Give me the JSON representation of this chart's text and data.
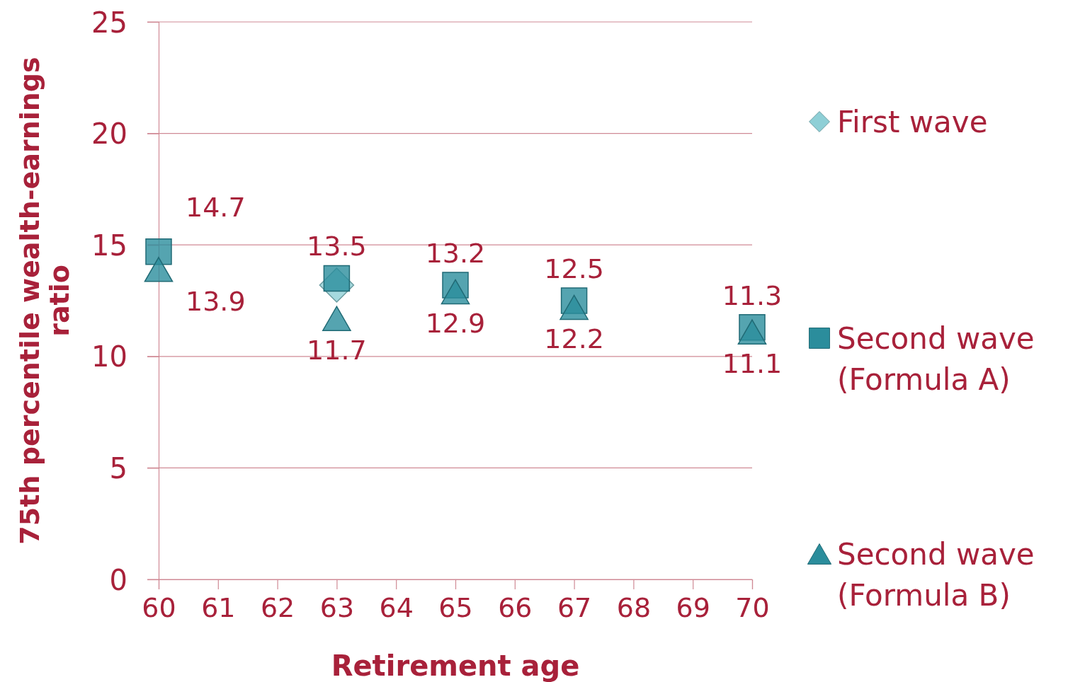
{
  "chart_data": {
    "type": "scatter",
    "xlabel": "Retirement age",
    "ylabel": "75th percentile wealth-earnings ratio",
    "x": [
      60,
      63,
      65,
      67,
      70
    ],
    "xlim": [
      60,
      70
    ],
    "xticks": [
      60,
      61,
      62,
      63,
      64,
      65,
      66,
      67,
      68,
      69,
      70
    ],
    "ylim": [
      0,
      25
    ],
    "yticks": [
      0,
      5,
      10,
      15,
      20,
      25
    ],
    "grid": "y",
    "legend": "right",
    "series": [
      {
        "name": "First wave",
        "color": "#8ecfd6",
        "marker": "diamond",
        "values": [
          null,
          13.2,
          null,
          null,
          null
        ],
        "value_labels": [
          null,
          null,
          null,
          null,
          null
        ]
      },
      {
        "name": "Second wave (Formula A)",
        "color": "#2b8d9c",
        "marker": "square",
        "values": [
          14.7,
          13.5,
          13.2,
          12.5,
          11.3
        ],
        "value_labels": [
          "14.7",
          "13.5",
          "13.2",
          "12.5",
          "11.3"
        ]
      },
      {
        "name": "Second wave (Formula B)",
        "color": "#2b8d9c",
        "marker": "triangle",
        "values": [
          13.9,
          11.7,
          12.9,
          12.2,
          11.1
        ],
        "value_labels": [
          "13.9",
          "11.7",
          "12.9",
          "12.2",
          "11.1"
        ]
      }
    ]
  }
}
